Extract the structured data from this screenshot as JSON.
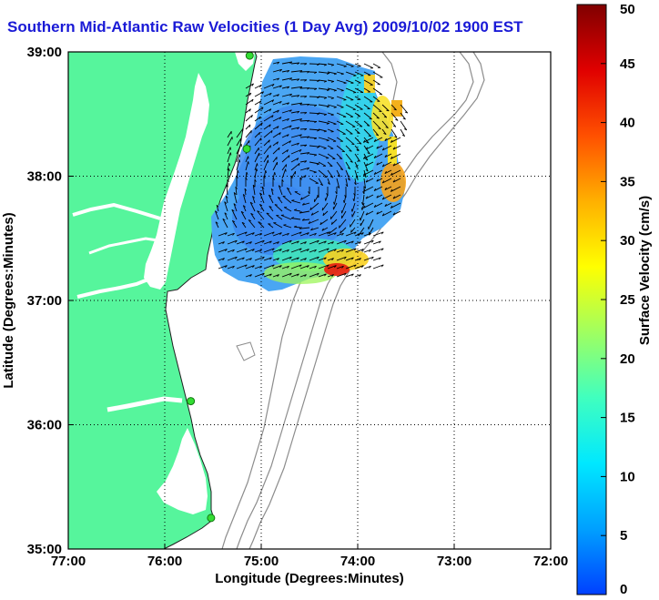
{
  "chart_data": {
    "type": "heatmap",
    "title": "Southern Mid-Atlantic Raw Velocities (1 Day Avg) 2009/10/02 1900 EST",
    "xlabel": "Longitude (Degrees:Minutes)",
    "ylabel": "Latitude (Degrees:Minutes)",
    "xlim": [
      -77,
      -72
    ],
    "ylim": [
      35,
      39
    ],
    "x_ticks": [
      {
        "value": -77,
        "label": "77:00"
      },
      {
        "value": -76,
        "label": "76:00"
      },
      {
        "value": -75,
        "label": "75:00"
      },
      {
        "value": -74,
        "label": "74:00"
      },
      {
        "value": -73,
        "label": "73:00"
      },
      {
        "value": -72,
        "label": "72:00"
      }
    ],
    "y_ticks": [
      {
        "value": 35,
        "label": "35:00"
      },
      {
        "value": 36,
        "label": "36:00"
      },
      {
        "value": 37,
        "label": "37:00"
      },
      {
        "value": 38,
        "label": "38:00"
      },
      {
        "value": 39,
        "label": "39:00"
      }
    ],
    "grid": true,
    "colorbar": {
      "label": "Surface Velocity (cm/s)",
      "range": [
        0,
        50
      ],
      "ticks": [
        0,
        5,
        10,
        15,
        20,
        25,
        30,
        35,
        40,
        45,
        50
      ]
    },
    "stations": [
      {
        "lon": -75.12,
        "lat": 38.97
      },
      {
        "lon": -75.15,
        "lat": 38.22
      },
      {
        "lon": -75.73,
        "lat": 36.19
      },
      {
        "lon": -75.52,
        "lat": 35.25
      }
    ]
  },
  "colors": {
    "land": "#56f59c",
    "title": "#1a1ad6",
    "bathymetry": "#8c8c8c",
    "arrows": "#000000",
    "station": "#33dd33"
  }
}
